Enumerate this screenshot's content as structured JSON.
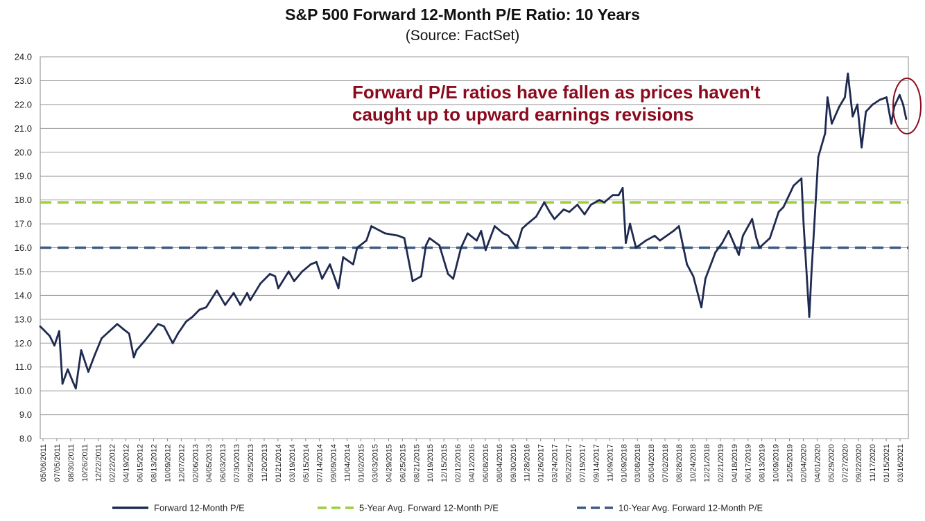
{
  "chart_data": {
    "type": "line",
    "title": "S&P 500 Forward 12-Month P/E Ratio: 10 Years",
    "subtitle": "(Source: FactSet)",
    "ylim": [
      8.0,
      24.0
    ],
    "y_ticks": [
      "24.0",
      "23.0",
      "22.0",
      "21.0",
      "20.0",
      "19.0",
      "18.0",
      "17.0",
      "16.0",
      "15.0",
      "14.0",
      "13.0",
      "12.0",
      "11.0",
      "10.0",
      "9.0",
      "8.0"
    ],
    "x_tick_labels": [
      "05/06/2011",
      "07/05/2011",
      "08/30/2011",
      "10/26/2011",
      "12/22/2011",
      "02/22/2012",
      "04/19/2012",
      "06/15/2012",
      "08/13/2012",
      "10/09/2012",
      "12/07/2012",
      "02/06/2013",
      "04/05/2013",
      "06/03/2013",
      "07/30/2013",
      "09/25/2013",
      "11/20/2013",
      "01/21/2014",
      "03/19/2014",
      "05/15/2014",
      "07/14/2014",
      "09/09/2014",
      "11/04/2014",
      "01/02/2015",
      "03/03/2015",
      "04/29/2015",
      "06/25/2015",
      "08/21/2015",
      "10/19/2015",
      "12/15/2015",
      "02/12/2016",
      "04/12/2016",
      "06/08/2016",
      "08/04/2016",
      "09/30/2016",
      "11/28/2016",
      "01/26/2017",
      "03/24/2017",
      "05/22/2017",
      "07/19/2017",
      "09/14/2017",
      "11/09/2017",
      "01/09/2018",
      "03/08/2018",
      "05/04/2018",
      "07/02/2018",
      "08/28/2018",
      "10/24/2018",
      "12/21/2018",
      "02/21/2019",
      "04/18/2019",
      "06/17/2019",
      "08/13/2019",
      "10/09/2019",
      "12/05/2019",
      "02/04/2020",
      "04/01/2020",
      "05/29/2020",
      "07/27/2020",
      "09/22/2020",
      "11/17/2020",
      "01/15/2021",
      "03/16/2021"
    ],
    "x_range": [
      "05/06/2011",
      "05/2021"
    ],
    "series": [
      {
        "name": "Forward 12-Month P/E",
        "color": "#1f2a50",
        "style": "solid",
        "points": [
          [
            "05/06/2011",
            12.7
          ],
          [
            "06/15/2011",
            12.3
          ],
          [
            "07/05/2011",
            11.9
          ],
          [
            "07/25/2011",
            12.5
          ],
          [
            "08/08/2011",
            10.3
          ],
          [
            "08/30/2011",
            10.9
          ],
          [
            "09/20/2011",
            10.4
          ],
          [
            "10/03/2011",
            10.1
          ],
          [
            "10/26/2011",
            11.7
          ],
          [
            "11/25/2011",
            10.8
          ],
          [
            "12/22/2011",
            11.5
          ],
          [
            "01/20/2012",
            12.2
          ],
          [
            "02/22/2012",
            12.5
          ],
          [
            "03/26/2012",
            12.8
          ],
          [
            "04/19/2012",
            12.6
          ],
          [
            "05/15/2012",
            12.4
          ],
          [
            "06/04/2012",
            11.4
          ],
          [
            "06/15/2012",
            11.7
          ],
          [
            "07/20/2012",
            12.1
          ],
          [
            "08/13/2012",
            12.4
          ],
          [
            "09/14/2012",
            12.8
          ],
          [
            "10/09/2012",
            12.7
          ],
          [
            "11/15/2012",
            12.0
          ],
          [
            "12/07/2012",
            12.4
          ],
          [
            "01/10/2013",
            12.9
          ],
          [
            "02/06/2013",
            13.1
          ],
          [
            "03/08/2013",
            13.4
          ],
          [
            "04/05/2013",
            13.5
          ],
          [
            "05/20/2013",
            14.2
          ],
          [
            "06/24/2013",
            13.6
          ],
          [
            "07/30/2013",
            14.1
          ],
          [
            "08/27/2013",
            13.6
          ],
          [
            "09/25/2013",
            14.1
          ],
          [
            "10/08/2013",
            13.8
          ],
          [
            "11/20/2013",
            14.5
          ],
          [
            "12/30/2013",
            14.9
          ],
          [
            "01/21/2014",
            14.8
          ],
          [
            "02/03/2014",
            14.3
          ],
          [
            "03/19/2014",
            15.0
          ],
          [
            "04/11/2014",
            14.6
          ],
          [
            "05/15/2014",
            15.0
          ],
          [
            "06/20/2014",
            15.3
          ],
          [
            "07/14/2014",
            15.4
          ],
          [
            "08/07/2014",
            14.7
          ],
          [
            "09/09/2014",
            15.3
          ],
          [
            "10/15/2014",
            14.3
          ],
          [
            "11/04/2014",
            15.6
          ],
          [
            "12/16/2014",
            15.3
          ],
          [
            "01/02/2015",
            16.0
          ],
          [
            "02/10/2015",
            16.3
          ],
          [
            "03/03/2015",
            16.9
          ],
          [
            "04/29/2015",
            16.6
          ],
          [
            "06/25/2015",
            16.5
          ],
          [
            "07/20/2015",
            16.4
          ],
          [
            "08/24/2015",
            14.6
          ],
          [
            "09/29/2015",
            14.8
          ],
          [
            "10/19/2015",
            16.1
          ],
          [
            "11/03/2015",
            16.4
          ],
          [
            "12/15/2015",
            16.1
          ],
          [
            "01/20/2016",
            14.9
          ],
          [
            "02/11/2016",
            14.7
          ],
          [
            "03/15/2016",
            16.0
          ],
          [
            "04/12/2016",
            16.6
          ],
          [
            "05/20/2016",
            16.3
          ],
          [
            "06/08/2016",
            16.7
          ],
          [
            "06/27/2016",
            15.9
          ],
          [
            "08/04/2016",
            16.9
          ],
          [
            "09/09/2016",
            16.6
          ],
          [
            "09/30/2016",
            16.5
          ],
          [
            "11/04/2016",
            16.0
          ],
          [
            "11/28/2016",
            16.8
          ],
          [
            "12/20/2016",
            17.0
          ],
          [
            "01/26/2017",
            17.3
          ],
          [
            "03/01/2017",
            17.9
          ],
          [
            "03/24/2017",
            17.5
          ],
          [
            "04/13/2017",
            17.2
          ],
          [
            "05/22/2017",
            17.6
          ],
          [
            "06/15/2017",
            17.5
          ],
          [
            "07/19/2017",
            17.8
          ],
          [
            "08/18/2017",
            17.4
          ],
          [
            "09/14/2017",
            17.8
          ],
          [
            "10/20/2017",
            18.0
          ],
          [
            "11/09/2017",
            17.9
          ],
          [
            "12/15/2017",
            18.2
          ],
          [
            "01/09/2018",
            18.2
          ],
          [
            "01/26/2018",
            18.5
          ],
          [
            "02/08/2018",
            16.2
          ],
          [
            "02/26/2018",
            17.0
          ],
          [
            "03/08/2018",
            16.6
          ],
          [
            "03/23/2018",
            16.0
          ],
          [
            "05/04/2018",
            16.3
          ],
          [
            "06/10/2018",
            16.5
          ],
          [
            "07/02/2018",
            16.3
          ],
          [
            "08/28/2018",
            16.7
          ],
          [
            "09/20/2018",
            16.9
          ],
          [
            "10/24/2018",
            15.3
          ],
          [
            "11/20/2018",
            14.8
          ],
          [
            "12/24/2018",
            13.5
          ],
          [
            "01/10/2019",
            14.7
          ],
          [
            "02/21/2019",
            15.8
          ],
          [
            "03/22/2019",
            16.2
          ],
          [
            "04/18/2019",
            16.7
          ],
          [
            "05/31/2019",
            15.7
          ],
          [
            "06/17/2019",
            16.5
          ],
          [
            "07/26/2019",
            17.2
          ],
          [
            "08/13/2019",
            16.4
          ],
          [
            "08/26/2019",
            16.0
          ],
          [
            "10/09/2019",
            16.4
          ],
          [
            "11/15/2019",
            17.5
          ],
          [
            "12/05/2019",
            17.7
          ],
          [
            "01/17/2020",
            18.6
          ],
          [
            "02/19/2020",
            18.9
          ],
          [
            "02/28/2020",
            17.0
          ],
          [
            "03/23/2020",
            13.1
          ],
          [
            "04/01/2020",
            14.9
          ],
          [
            "04/30/2020",
            19.8
          ],
          [
            "05/29/2020",
            20.8
          ],
          [
            "06/08/2020",
            22.3
          ],
          [
            "06/26/2020",
            21.2
          ],
          [
            "07/27/2020",
            21.9
          ],
          [
            "08/20/2020",
            22.3
          ],
          [
            "09/02/2020",
            23.3
          ],
          [
            "09/22/2020",
            21.5
          ],
          [
            "10/12/2020",
            22.0
          ],
          [
            "10/30/2020",
            20.2
          ],
          [
            "11/17/2020",
            21.7
          ],
          [
            "12/15/2020",
            22.0
          ],
          [
            "01/15/2021",
            22.2
          ],
          [
            "02/12/2021",
            22.3
          ],
          [
            "03/04/2021",
            21.2
          ],
          [
            "03/16/2021",
            21.9
          ],
          [
            "04/08/2021",
            22.4
          ],
          [
            "04/23/2021",
            22.0
          ],
          [
            "05/06/2021",
            21.4
          ]
        ]
      },
      {
        "name": "5-Year Avg. Forward 12-Month P/E",
        "color": "#9ccf3a",
        "style": "dashed",
        "value": 17.9
      },
      {
        "name": "10-Year Avg. Forward 12-Month P/E",
        "color": "#3d5a80",
        "style": "dashed",
        "value": 16.0
      }
    ],
    "annotations": [
      {
        "text_lines": [
          "Forward P/E ratios have fallen as prices haven't",
          "caught up to upward earnings revisions"
        ],
        "color": "#8b0a1e"
      }
    ],
    "grid": true,
    "legend_position": "bottom"
  }
}
